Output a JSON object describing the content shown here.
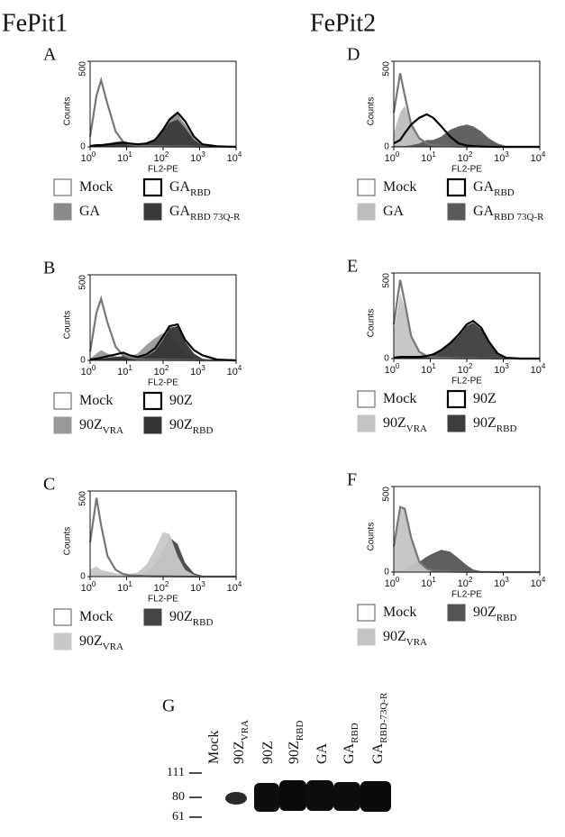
{
  "columns": [
    "FePit1",
    "FePit2"
  ],
  "chart_data": [
    {
      "type": "histogram",
      "letter": "A",
      "xlabel": "FL2-PE",
      "ylabel": "Counts",
      "log_x": true,
      "xlim": [
        1,
        10000
      ],
      "xticks": [
        {
          "value": 1,
          "label": "10",
          "exp": "0"
        },
        {
          "value": 10,
          "label": "10",
          "exp": "1"
        },
        {
          "value": 100,
          "label": "10",
          "exp": "2"
        },
        {
          "value": 1000,
          "label": "10",
          "exp": "3"
        },
        {
          "value": 10000,
          "label": "10",
          "exp": "4"
        }
      ],
      "ylim": [
        0,
        500
      ],
      "yticks": [
        0,
        500
      ],
      "x": [
        1,
        1.5,
        2,
        3,
        5,
        8,
        12,
        20,
        35,
        60,
        100,
        150,
        250,
        400,
        700,
        1200,
        3000,
        10000
      ],
      "series": [
        {
          "name": "Mock",
          "sub": "",
          "style": "line",
          "color": "#777777",
          "values": [
            60,
            300,
            390,
            250,
            90,
            30,
            15,
            8,
            5,
            3,
            3,
            2,
            2,
            2,
            1,
            0,
            0,
            0
          ]
        },
        {
          "name": "GA",
          "sub": "RBD",
          "style": "line",
          "color": "#000000",
          "values": [
            5,
            10,
            10,
            15,
            20,
            25,
            20,
            15,
            20,
            40,
            100,
            160,
            200,
            150,
            60,
            15,
            3,
            0
          ]
        },
        {
          "name": "GA",
          "sub": "",
          "style": "fill",
          "color": "#8a8a8a",
          "values": [
            5,
            10,
            12,
            20,
            30,
            35,
            25,
            15,
            20,
            45,
            110,
            170,
            190,
            130,
            50,
            10,
            2,
            0
          ]
        },
        {
          "name": "GA",
          "sub": "RBD 73Q-R",
          "style": "fill",
          "color": "#3a3a3a",
          "values": [
            3,
            8,
            10,
            15,
            25,
            30,
            22,
            14,
            18,
            35,
            90,
            140,
            160,
            110,
            40,
            8,
            2,
            0
          ]
        }
      ]
    },
    {
      "type": "histogram",
      "letter": "B",
      "xlabel": "FL2-PE",
      "ylabel": "Counts",
      "log_x": true,
      "xlim": [
        1,
        10000
      ],
      "xticks": [
        {
          "value": 1,
          "label": "10",
          "exp": "0"
        },
        {
          "value": 10,
          "label": "10",
          "exp": "1"
        },
        {
          "value": 100,
          "label": "10",
          "exp": "2"
        },
        {
          "value": 1000,
          "label": "10",
          "exp": "3"
        },
        {
          "value": 10000,
          "label": "10",
          "exp": "4"
        }
      ],
      "ylim": [
        0,
        500
      ],
      "yticks": [
        0,
        500
      ],
      "x": [
        1,
        1.5,
        2,
        3,
        5,
        8,
        12,
        20,
        35,
        60,
        100,
        150,
        250,
        400,
        700,
        1200,
        3000,
        10000
      ],
      "series": [
        {
          "name": "Mock",
          "sub": "",
          "style": "line",
          "color": "#777777",
          "values": [
            50,
            280,
            360,
            220,
            80,
            30,
            15,
            8,
            5,
            3,
            3,
            2,
            2,
            2,
            1,
            0,
            0,
            0
          ]
        },
        {
          "name": "90Z",
          "sub": "",
          "style": "line",
          "color": "#000000",
          "values": [
            5,
            10,
            15,
            25,
            35,
            45,
            30,
            20,
            35,
            70,
            140,
            200,
            210,
            120,
            60,
            30,
            5,
            0
          ]
        },
        {
          "name": "90Z",
          "sub": "VRA",
          "style": "fill",
          "color": "#999999",
          "values": [
            10,
            40,
            60,
            40,
            25,
            20,
            20,
            40,
            90,
            130,
            160,
            150,
            100,
            40,
            10,
            3,
            0,
            0
          ]
        },
        {
          "name": "90Z",
          "sub": "RBD",
          "style": "fill",
          "color": "#333333",
          "values": [
            3,
            8,
            10,
            15,
            20,
            25,
            20,
            15,
            25,
            55,
            120,
            190,
            200,
            110,
            40,
            10,
            2,
            0
          ]
        }
      ]
    },
    {
      "type": "histogram",
      "letter": "C",
      "xlabel": "FL2-PE",
      "ylabel": "Counts",
      "log_x": true,
      "xlim": [
        1,
        10000
      ],
      "xticks": [
        {
          "value": 1,
          "label": "10",
          "exp": "0"
        },
        {
          "value": 10,
          "label": "10",
          "exp": "1"
        },
        {
          "value": 100,
          "label": "10",
          "exp": "2"
        },
        {
          "value": 1000,
          "label": "10",
          "exp": "3"
        },
        {
          "value": 10000,
          "label": "10",
          "exp": "4"
        }
      ],
      "ylim": [
        0,
        500
      ],
      "yticks": [
        0,
        500
      ],
      "x": [
        1,
        1.5,
        2,
        3,
        5,
        8,
        12,
        20,
        35,
        60,
        100,
        150,
        250,
        400,
        700,
        1200,
        3000,
        10000
      ],
      "series": [
        {
          "name": "Mock",
          "sub": "",
          "style": "line",
          "color": "#777777",
          "values": [
            200,
            460,
            300,
            120,
            40,
            15,
            8,
            5,
            3,
            2,
            2,
            2,
            1,
            1,
            0,
            0,
            0,
            0
          ]
        },
        {
          "name": "90Z",
          "sub": "RBD",
          "style": "fill",
          "color": "#444444",
          "values": [
            10,
            20,
            20,
            15,
            10,
            8,
            8,
            10,
            25,
            70,
            150,
            230,
            190,
            80,
            20,
            5,
            0,
            0
          ]
        },
        {
          "name": "90Z",
          "sub": "VRA",
          "style": "fill",
          "color": "#c8c8c8",
          "values": [
            40,
            60,
            40,
            30,
            20,
            15,
            15,
            25,
            70,
            160,
            260,
            250,
            120,
            40,
            10,
            3,
            0,
            0
          ]
        }
      ]
    },
    {
      "type": "histogram",
      "letter": "D",
      "xlabel": "FL2-PE",
      "ylabel": "Counts",
      "log_x": true,
      "xlim": [
        1,
        10000
      ],
      "xticks": [
        {
          "value": 1,
          "label": "10",
          "exp": "0"
        },
        {
          "value": 10,
          "label": "10",
          "exp": "1"
        },
        {
          "value": 100,
          "label": "10",
          "exp": "2"
        },
        {
          "value": 1000,
          "label": "10",
          "exp": "3"
        },
        {
          "value": 10000,
          "label": "10",
          "exp": "4"
        }
      ],
      "ylim": [
        0,
        500
      ],
      "yticks": [
        0,
        500
      ],
      "x": [
        1,
        1.5,
        2,
        3,
        5,
        8,
        12,
        20,
        35,
        60,
        100,
        150,
        250,
        400,
        700,
        1200,
        3000,
        10000
      ],
      "series": [
        {
          "name": "Mock",
          "sub": "",
          "style": "line",
          "color": "#777777",
          "values": [
            200,
            430,
            300,
            130,
            50,
            20,
            10,
            5,
            3,
            2,
            2,
            2,
            1,
            1,
            0,
            0,
            0,
            0
          ]
        },
        {
          "name": "GA",
          "sub": "RBD",
          "style": "line",
          "color": "#000000",
          "values": [
            20,
            40,
            80,
            130,
            170,
            190,
            170,
            120,
            60,
            20,
            8,
            4,
            2,
            1,
            0,
            0,
            0,
            0
          ]
        },
        {
          "name": "GA",
          "sub": "",
          "style": "fill",
          "color": "#bdbdbd",
          "values": [
            80,
            200,
            240,
            150,
            60,
            25,
            12,
            6,
            3,
            2,
            2,
            1,
            1,
            0,
            0,
            0,
            0,
            0
          ]
        },
        {
          "name": "GA",
          "sub": "RBD 73Q-R",
          "style": "fill",
          "color": "#5a5a5a",
          "values": [
            5,
            5,
            5,
            10,
            20,
            40,
            40,
            60,
            100,
            120,
            130,
            120,
            90,
            50,
            20,
            5,
            0,
            0
          ]
        }
      ]
    },
    {
      "type": "histogram",
      "letter": "E",
      "xlabel": "FL2-PE",
      "ylabel": "Counts",
      "log_x": true,
      "xlim": [
        1,
        10000
      ],
      "xticks": [
        {
          "value": 1,
          "label": "10",
          "exp": "0"
        },
        {
          "value": 10,
          "label": "10",
          "exp": "1"
        },
        {
          "value": 100,
          "label": "10",
          "exp": "2"
        },
        {
          "value": 1000,
          "label": "10",
          "exp": "3"
        },
        {
          "value": 10000,
          "label": "10",
          "exp": "4"
        }
      ],
      "ylim": [
        0,
        500
      ],
      "yticks": [
        0,
        500
      ],
      "x": [
        1,
        1.5,
        2,
        3,
        5,
        8,
        12,
        20,
        35,
        60,
        100,
        150,
        250,
        400,
        700,
        1200,
        3000,
        10000
      ],
      "series": [
        {
          "name": "Mock",
          "sub": "",
          "style": "line",
          "color": "#777777",
          "values": [
            200,
            460,
            330,
            130,
            40,
            15,
            8,
            5,
            3,
            2,
            2,
            2,
            1,
            1,
            0,
            0,
            0,
            0
          ]
        },
        {
          "name": "90Z",
          "sub": "",
          "style": "line",
          "color": "#000000",
          "values": [
            5,
            10,
            10,
            10,
            10,
            15,
            25,
            50,
            90,
            140,
            200,
            220,
            180,
            100,
            30,
            5,
            0,
            0
          ]
        },
        {
          "name": "90Z",
          "sub": "VRA",
          "style": "fill",
          "color": "#c4c4c4",
          "values": [
            150,
            380,
            300,
            120,
            40,
            15,
            8,
            5,
            3,
            2,
            2,
            2,
            1,
            1,
            0,
            0,
            0,
            0
          ]
        },
        {
          "name": "90Z",
          "sub": "RBD",
          "style": "fill",
          "color": "#3d3d3d",
          "values": [
            3,
            8,
            8,
            8,
            10,
            14,
            22,
            45,
            85,
            130,
            190,
            210,
            170,
            90,
            25,
            4,
            0,
            0
          ]
        }
      ]
    },
    {
      "type": "histogram",
      "letter": "F",
      "xlabel": "FL2-PE",
      "ylabel": "Counts",
      "log_x": true,
      "xlim": [
        1,
        10000
      ],
      "xticks": [
        {
          "value": 1,
          "label": "10",
          "exp": "0"
        },
        {
          "value": 10,
          "label": "10",
          "exp": "1"
        },
        {
          "value": 100,
          "label": "10",
          "exp": "2"
        },
        {
          "value": 1000,
          "label": "10",
          "exp": "3"
        },
        {
          "value": 10000,
          "label": "10",
          "exp": "4"
        }
      ],
      "ylim": [
        0,
        500
      ],
      "yticks": [
        0,
        500
      ],
      "x": [
        1,
        1.5,
        2,
        3,
        5,
        8,
        12,
        20,
        35,
        60,
        100,
        150,
        250,
        400,
        700,
        1200,
        3000,
        10000
      ],
      "series": [
        {
          "name": "Mock",
          "sub": "",
          "style": "line",
          "color": "#777777",
          "values": [
            150,
            380,
            370,
            200,
            60,
            20,
            8,
            5,
            3,
            2,
            2,
            2,
            1,
            1,
            0,
            0,
            0,
            0
          ]
        },
        {
          "name": "90Z",
          "sub": "RBD",
          "style": "fill",
          "color": "#555555",
          "values": [
            5,
            10,
            20,
            40,
            60,
            90,
            110,
            130,
            120,
            80,
            40,
            15,
            5,
            2,
            0,
            0,
            0,
            0
          ]
        },
        {
          "name": "90Z",
          "sub": "VRA",
          "style": "fill",
          "color": "#c4c4c4",
          "values": [
            150,
            360,
            380,
            200,
            60,
            20,
            8,
            5,
            3,
            2,
            2,
            1,
            1,
            0,
            0,
            0,
            0,
            0
          ]
        }
      ]
    }
  ],
  "blot": {
    "letter": "G",
    "lanes": [
      {
        "name": "Mock",
        "sub": ""
      },
      {
        "name": "90Z",
        "sub": "VRA"
      },
      {
        "name": "90Z",
        "sub": ""
      },
      {
        "name": "90Z",
        "sub": "RBD"
      },
      {
        "name": "GA",
        "sub": ""
      },
      {
        "name": "GA",
        "sub": "RBD"
      },
      {
        "name": "GA",
        "sub": "RBD-73Q-R"
      }
    ],
    "markers": [
      111,
      80,
      61
    ]
  }
}
